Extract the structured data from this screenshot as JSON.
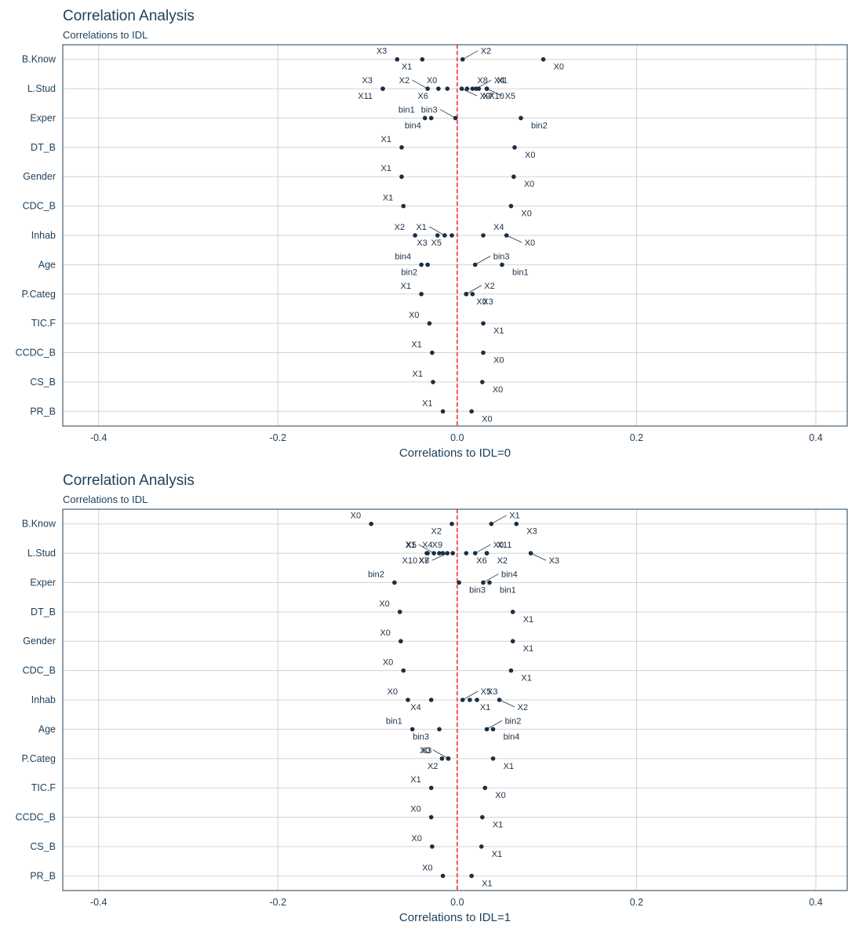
{
  "chart_data": [
    {
      "type": "scatter",
      "title": "Correlation Analysis",
      "subtitle": "Correlations to IDL",
      "xlabel": "Correlations to IDL=0",
      "ylabel": "",
      "xlim": [
        -0.44,
        0.435
      ],
      "xticks": [
        -0.4,
        -0.2,
        0.0,
        0.2,
        0.4
      ],
      "xtick_labels": [
        "-0.4",
        "-0.2",
        "0.0",
        "0.2",
        "0.4"
      ],
      "reference_line": 0,
      "grid": true,
      "colors": {
        "points": "#1a2f44",
        "text": "#1e3f5a",
        "reference": "#ff0000",
        "grid": "#d3d3d3",
        "border": "#1e3f5a"
      },
      "categories": [
        "B.Know",
        "L.Stud",
        "Exper",
        "DT_B",
        "Gender",
        "CDC_B",
        "Inhab",
        "Age",
        "P.Categ",
        "TIC.F",
        "CCDC_B",
        "CS_B",
        "PR_B"
      ],
      "points": [
        {
          "category": "B.Know",
          "label": "X3",
          "x": -0.067
        },
        {
          "category": "B.Know",
          "label": "X1",
          "x": -0.039
        },
        {
          "category": "B.Know",
          "label": "X2",
          "x": 0.006
        },
        {
          "category": "B.Know",
          "label": "X0",
          "x": 0.096
        },
        {
          "category": "L.Stud",
          "label": "X3",
          "x": -0.083
        },
        {
          "category": "L.Stud",
          "label": "X11",
          "x": -0.083
        },
        {
          "category": "L.Stud",
          "label": "X2",
          "x": -0.033
        },
        {
          "category": "L.Stud",
          "label": "X6",
          "x": -0.021
        },
        {
          "category": "L.Stud",
          "label": "X0",
          "x": -0.011
        },
        {
          "category": "L.Stud",
          "label": "X9",
          "x": 0.005
        },
        {
          "category": "L.Stud",
          "label": "X8",
          "x": 0.011
        },
        {
          "category": "L.Stud",
          "label": "X7",
          "x": 0.017
        },
        {
          "category": "L.Stud",
          "label": "X4",
          "x": 0.021
        },
        {
          "category": "L.Stud",
          "label": "X10",
          "x": 0.024
        },
        {
          "category": "L.Stud",
          "label": "X1",
          "x": 0.033
        },
        {
          "category": "L.Stud",
          "label": "X5",
          "x": 0.033
        },
        {
          "category": "Exper",
          "label": "bin1",
          "x": -0.036
        },
        {
          "category": "Exper",
          "label": "bin4",
          "x": -0.029
        },
        {
          "category": "Exper",
          "label": "bin3",
          "x": -0.002
        },
        {
          "category": "Exper",
          "label": "bin2",
          "x": 0.071
        },
        {
          "category": "DT_B",
          "label": "X1",
          "x": -0.062
        },
        {
          "category": "DT_B",
          "label": "X0",
          "x": 0.064
        },
        {
          "category": "Gender",
          "label": "X1",
          "x": -0.062
        },
        {
          "category": "Gender",
          "label": "X0",
          "x": 0.063
        },
        {
          "category": "CDC_B",
          "label": "X1",
          "x": -0.06
        },
        {
          "category": "CDC_B",
          "label": "X0",
          "x": 0.06
        },
        {
          "category": "Inhab",
          "label": "X2",
          "x": -0.047
        },
        {
          "category": "Inhab",
          "label": "X3",
          "x": -0.022
        },
        {
          "category": "Inhab",
          "label": "X1",
          "x": -0.014
        },
        {
          "category": "Inhab",
          "label": "X5",
          "x": -0.006
        },
        {
          "category": "Inhab",
          "label": "X4",
          "x": 0.029
        },
        {
          "category": "Inhab",
          "label": "X0",
          "x": 0.055
        },
        {
          "category": "Age",
          "label": "bin4",
          "x": -0.04
        },
        {
          "category": "Age",
          "label": "bin2",
          "x": -0.033
        },
        {
          "category": "Age",
          "label": "bin3",
          "x": 0.02
        },
        {
          "category": "Age",
          "label": "bin1",
          "x": 0.05
        },
        {
          "category": "P.Categ",
          "label": "X1",
          "x": -0.04
        },
        {
          "category": "P.Categ",
          "label": "X0",
          "x": 0.01
        },
        {
          "category": "P.Categ",
          "label": "X2",
          "x": 0.01
        },
        {
          "category": "P.Categ",
          "label": "X3",
          "x": 0.017
        },
        {
          "category": "TIC.F",
          "label": "X0",
          "x": -0.031
        },
        {
          "category": "TIC.F",
          "label": "X1",
          "x": 0.029
        },
        {
          "category": "CCDC_B",
          "label": "X1",
          "x": -0.028
        },
        {
          "category": "CCDC_B",
          "label": "X0",
          "x": 0.029
        },
        {
          "category": "CS_B",
          "label": "X1",
          "x": -0.027
        },
        {
          "category": "CS_B",
          "label": "X0",
          "x": 0.028
        },
        {
          "category": "PR_B",
          "label": "X1",
          "x": -0.016
        },
        {
          "category": "PR_B",
          "label": "X0",
          "x": 0.016
        }
      ]
    },
    {
      "type": "scatter",
      "title": "Correlation Analysis",
      "subtitle": "Correlations to IDL",
      "xlabel": "Correlations to IDL=1",
      "ylabel": "",
      "xlim": [
        -0.44,
        0.435
      ],
      "xticks": [
        -0.4,
        -0.2,
        0.0,
        0.2,
        0.4
      ],
      "xtick_labels": [
        "-0.4",
        "-0.2",
        "0.0",
        "0.2",
        "0.4"
      ],
      "reference_line": 0,
      "grid": true,
      "colors": {
        "points": "#1a2f44",
        "text": "#1e3f5a",
        "reference": "#ff0000",
        "grid": "#d3d3d3",
        "border": "#1e3f5a"
      },
      "categories": [
        "B.Know",
        "L.Stud",
        "Exper",
        "DT_B",
        "Gender",
        "CDC_B",
        "Inhab",
        "Age",
        "P.Categ",
        "TIC.F",
        "CCDC_B",
        "CS_B",
        "PR_B"
      ],
      "points": [
        {
          "category": "B.Know",
          "label": "X0",
          "x": -0.096
        },
        {
          "category": "B.Know",
          "label": "X2",
          "x": -0.006
        },
        {
          "category": "B.Know",
          "label": "X1",
          "x": 0.038
        },
        {
          "category": "B.Know",
          "label": "X3",
          "x": 0.066
        },
        {
          "category": "L.Stud",
          "label": "X5",
          "x": -0.034
        },
        {
          "category": "L.Stud",
          "label": "X10",
          "x": -0.033
        },
        {
          "category": "L.Stud",
          "label": "X1",
          "x": -0.026
        },
        {
          "category": "L.Stud",
          "label": "X7",
          "x": -0.02
        },
        {
          "category": "L.Stud",
          "label": "X4",
          "x": -0.016
        },
        {
          "category": "L.Stud",
          "label": "X8",
          "x": -0.011
        },
        {
          "category": "L.Stud",
          "label": "X9",
          "x": -0.005
        },
        {
          "category": "L.Stud",
          "label": "X6",
          "x": 0.01
        },
        {
          "category": "L.Stud",
          "label": "X0",
          "x": 0.02
        },
        {
          "category": "L.Stud",
          "label": "X2",
          "x": 0.033
        },
        {
          "category": "L.Stud",
          "label": "X11",
          "x": 0.033
        },
        {
          "category": "L.Stud",
          "label": "X3",
          "x": 0.082
        },
        {
          "category": "Exper",
          "label": "bin2",
          "x": -0.07
        },
        {
          "category": "Exper",
          "label": "bin3",
          "x": 0.002
        },
        {
          "category": "Exper",
          "label": "bin4",
          "x": 0.029
        },
        {
          "category": "Exper",
          "label": "bin1",
          "x": 0.036
        },
        {
          "category": "DT_B",
          "label": "X0",
          "x": -0.064
        },
        {
          "category": "DT_B",
          "label": "X1",
          "x": 0.062
        },
        {
          "category": "Gender",
          "label": "X0",
          "x": -0.063
        },
        {
          "category": "Gender",
          "label": "X1",
          "x": 0.062
        },
        {
          "category": "CDC_B",
          "label": "X0",
          "x": -0.06
        },
        {
          "category": "CDC_B",
          "label": "X1",
          "x": 0.06
        },
        {
          "category": "Inhab",
          "label": "X0",
          "x": -0.055
        },
        {
          "category": "Inhab",
          "label": "X4",
          "x": -0.029
        },
        {
          "category": "Inhab",
          "label": "X5",
          "x": 0.006
        },
        {
          "category": "Inhab",
          "label": "X1",
          "x": 0.014
        },
        {
          "category": "Inhab",
          "label": "X3",
          "x": 0.022
        },
        {
          "category": "Inhab",
          "label": "X2",
          "x": 0.047
        },
        {
          "category": "Age",
          "label": "bin1",
          "x": -0.05
        },
        {
          "category": "Age",
          "label": "bin3",
          "x": -0.02
        },
        {
          "category": "Age",
          "label": "bin2",
          "x": 0.033
        },
        {
          "category": "Age",
          "label": "bin4",
          "x": 0.04
        },
        {
          "category": "P.Categ",
          "label": "X3",
          "x": -0.017
        },
        {
          "category": "P.Categ",
          "label": "X2",
          "x": -0.01
        },
        {
          "category": "P.Categ",
          "label": "X0",
          "x": -0.01
        },
        {
          "category": "P.Categ",
          "label": "X1",
          "x": 0.04
        },
        {
          "category": "TIC.F",
          "label": "X1",
          "x": -0.029
        },
        {
          "category": "TIC.F",
          "label": "X0",
          "x": 0.031
        },
        {
          "category": "CCDC_B",
          "label": "X0",
          "x": -0.029
        },
        {
          "category": "CCDC_B",
          "label": "X1",
          "x": 0.028
        },
        {
          "category": "CS_B",
          "label": "X0",
          "x": -0.028
        },
        {
          "category": "CS_B",
          "label": "X1",
          "x": 0.027
        },
        {
          "category": "PR_B",
          "label": "X0",
          "x": -0.016
        },
        {
          "category": "PR_B",
          "label": "X1",
          "x": 0.016
        }
      ]
    }
  ]
}
